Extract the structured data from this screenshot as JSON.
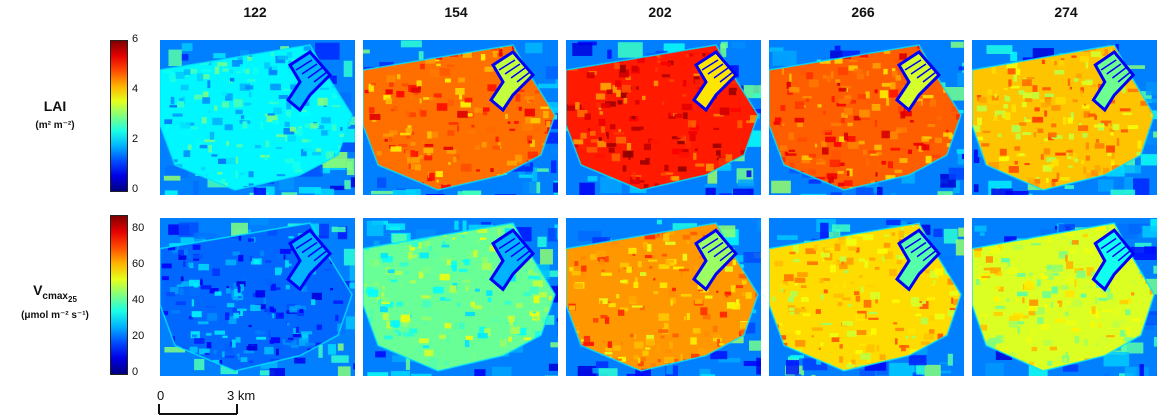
{
  "columns": [
    "122",
    "154",
    "202",
    "266",
    "274"
  ],
  "rows": [
    {
      "label_main": "LAI",
      "label_unit": "(m² m⁻²)",
      "colorbar_ticks": [
        "6",
        "4",
        "2",
        "0"
      ],
      "ticks_values": [
        6,
        4,
        2,
        0
      ],
      "range": [
        0,
        6
      ],
      "mean_levels": [
        2.2,
        4.6,
        5.1,
        4.7,
        4.1
      ]
    },
    {
      "label_main": "V",
      "label_sub": "cmax",
      "label_subsub": "25",
      "label_unit": "(μmol m⁻² s⁻¹)",
      "colorbar_ticks": [
        "80",
        "60",
        "40",
        "20",
        "0"
      ],
      "ticks_values": [
        80,
        60,
        40,
        20,
        0
      ],
      "range": [
        0,
        88
      ],
      "mean_levels": [
        20,
        42,
        64,
        58,
        52
      ]
    }
  ],
  "colormap": "jet",
  "scalebar": {
    "start": "0",
    "end": "3 km"
  }
}
